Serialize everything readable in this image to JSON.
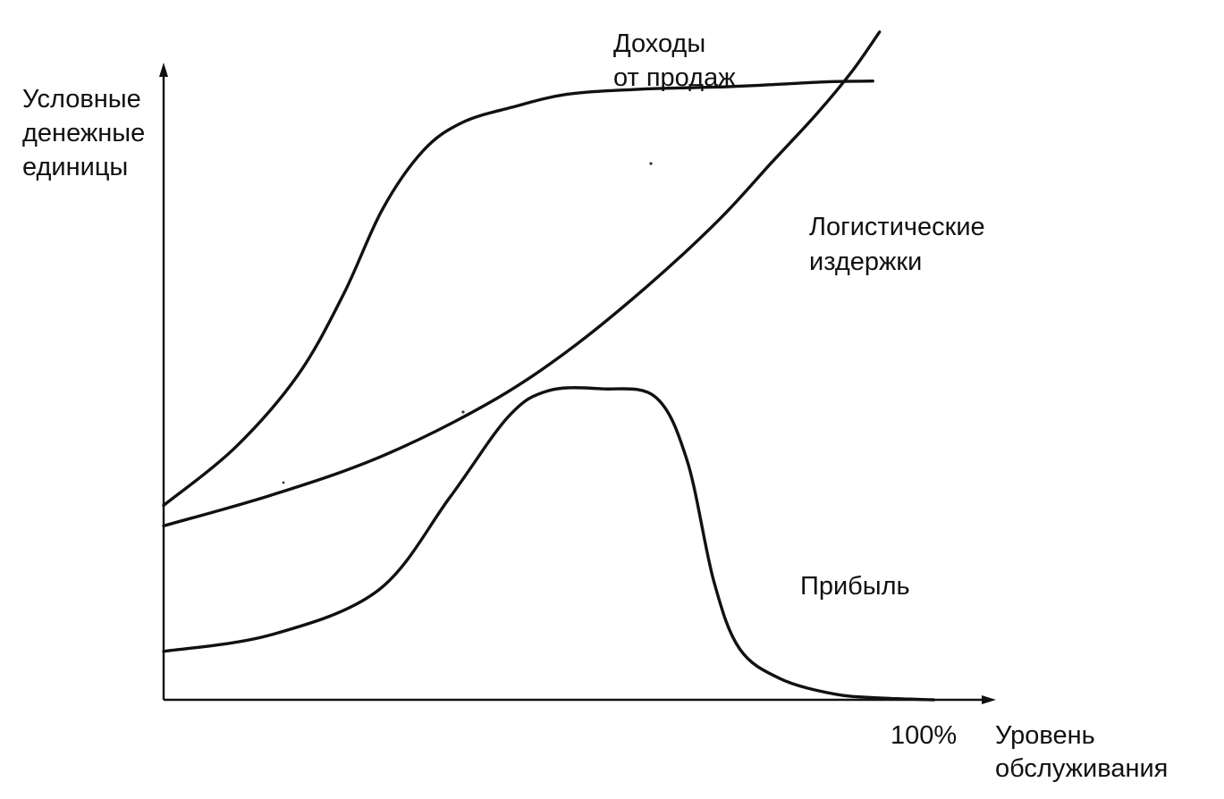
{
  "chart_data": {
    "type": "line",
    "title": "",
    "ylabel": [
      "Условные",
      "денежные",
      "единицы"
    ],
    "xlabel": [
      "Уровень",
      "обслуживания"
    ],
    "x_tick_labels": [
      "100%"
    ],
    "xlim": [
      0,
      100
    ],
    "ylim": [
      0,
      100
    ],
    "grid": false,
    "legend": "none",
    "series": [
      {
        "name": "Доходы от продаж",
        "label_lines": [
          "Доходы",
          "от продаж"
        ],
        "x": [
          0,
          8.6,
          16.1,
          21.6,
          26.3,
          31.2,
          35.9,
          41.9,
          48.4,
          57.0,
          67.7,
          74.1,
          79.9,
          85.2
        ],
        "y": [
          30.5,
          39.6,
          50.9,
          63.6,
          77.0,
          86.2,
          90.6,
          93.0,
          95.0,
          95.8,
          96.2,
          96.6,
          97.0,
          97.1
        ]
      },
      {
        "name": "Логистические издержки",
        "label_lines": [
          "Логистические",
          "издержки"
        ],
        "x": [
          0,
          12.9,
          25.8,
          38.7,
          48.4,
          58.1,
          66.7,
          73.1,
          78.5,
          82.8,
          86.0
        ],
        "y": [
          27.3,
          32.1,
          38.0,
          46.3,
          54.6,
          64.9,
          75.3,
          84.4,
          92.0,
          98.8,
          104.8
        ]
      },
      {
        "name": "Прибыль",
        "label_lines": [
          "Прибыль"
        ],
        "x": [
          0,
          12.9,
          25.8,
          34.4,
          41.4,
          46.2,
          52.7,
          59.1,
          62.9,
          66.1,
          69.2,
          74.1,
          80.6,
          86.0,
          92.5
        ],
        "y": [
          7.6,
          10.2,
          17.2,
          31.8,
          44.4,
          48.5,
          48.8,
          47.5,
          37.5,
          18.6,
          8.0,
          3.3,
          0.9,
          0.3,
          0
        ]
      }
    ]
  }
}
